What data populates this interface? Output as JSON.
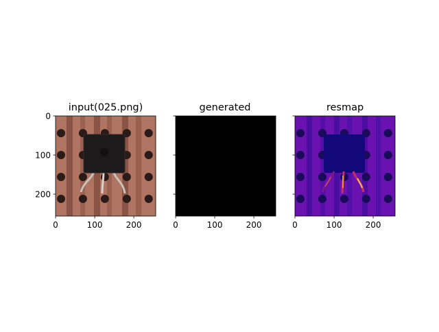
{
  "figure": {
    "panels": [
      {
        "title": "input(025.png)",
        "kind": "image-circuit"
      },
      {
        "title": "generated",
        "kind": "image-black"
      },
      {
        "title": "resmap",
        "kind": "image-resmap"
      }
    ],
    "x_tick_labels": [
      "0",
      "100",
      "200"
    ],
    "y_tick_labels": [
      "0",
      "100",
      "200"
    ]
  },
  "chart_data": {
    "type": "heatmap",
    "subplots": [
      {
        "title": "input(025.png)",
        "image": "transistor on copper perfboard",
        "xlim": [
          0,
          256
        ],
        "ylim": [
          256,
          0
        ],
        "xticks": [
          0,
          100,
          200
        ],
        "yticks": [
          0,
          100,
          200
        ]
      },
      {
        "title": "generated",
        "image": "all black",
        "xlim": [
          0,
          256
        ],
        "ylim": [
          256,
          0
        ],
        "xticks": [
          0,
          100,
          200
        ],
        "yticks": []
      },
      {
        "title": "resmap",
        "image": "residual map, plasma-like colormap",
        "xlim": [
          0,
          256
        ],
        "ylim": [
          256,
          0
        ],
        "xticks": [
          0,
          100,
          200
        ],
        "yticks": []
      }
    ]
  },
  "colors": {
    "copper": "#b07462",
    "strip": "#8a5547",
    "hole": "#2a1a18",
    "transistor": "#1d1a1c",
    "black": "#000000",
    "resmap_bg": "#6a12b0",
    "resmap_strip": "#3a0e9a",
    "resmap_body": "#12087a",
    "resmap_hot": "#f08a3a"
  }
}
